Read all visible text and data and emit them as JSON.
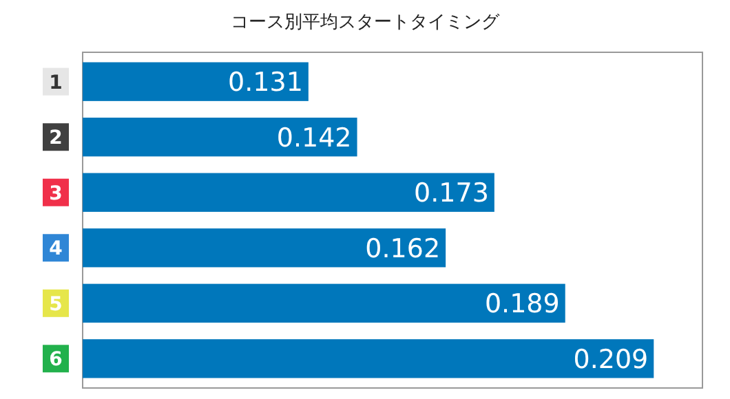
{
  "chart_data": {
    "type": "bar",
    "orientation": "horizontal",
    "title": "コース別平均スタートタイミング",
    "categories": [
      "1",
      "2",
      "3",
      "4",
      "5",
      "6"
    ],
    "values": [
      0.131,
      0.142,
      0.173,
      0.162,
      0.189,
      0.209
    ],
    "color": "#0077bb",
    "xlim": [
      0.08,
      0.22
    ],
    "data_labels": true,
    "tick_labels": "y"
  }
}
